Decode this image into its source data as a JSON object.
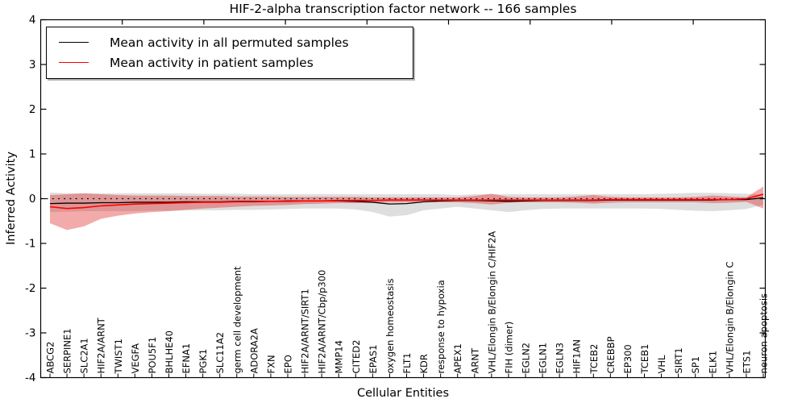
{
  "title": "HIF-2-alpha transcription factor network -- 166 samples",
  "legend": {
    "items": [
      {
        "label": "Mean activity in all permuted samples",
        "color": "#000000"
      },
      {
        "label": "Mean activity in patient samples",
        "color": "#ff0000"
      }
    ]
  },
  "chart_data": {
    "type": "line",
    "title": "HIF-2-alpha transcription factor network -- 166 samples",
    "xlabel": "Cellular Entities",
    "ylabel": "Inferred Activity",
    "ylim": [
      -4,
      4
    ],
    "yticks": [
      -4,
      -3,
      -2,
      -1,
      0,
      1,
      2,
      3,
      4
    ],
    "grid": false,
    "zero_reference_line": 0,
    "legend_position": "upper left",
    "colors": {
      "permuted_line": "#000000",
      "permuted_band": "rgba(0,0,0,0.13)",
      "patient_line": "#ff0000",
      "patient_band": "rgba(221,20,20,0.36)",
      "zero_line": "#000000"
    },
    "categories": [
      "ABCG2",
      "SERPINE1",
      "SLC2A1",
      "HIF2A/ARNT",
      "TWIST1",
      "VEGFA",
      "POU5F1",
      "BHLHE40",
      "EFNA1",
      "PGK1",
      "SLC11A2",
      "germ cell development",
      "ADORA2A",
      "FXN",
      "EPO",
      "HIF2A/ARNT/SIRT1",
      "HIF2A/ARNT/Cbp/p300",
      "MMP14",
      "CITED2",
      "EPAS1",
      "oxygen homeostasis",
      "FLT1",
      "KDR",
      "response to hypoxia",
      "APEX1",
      "ARNT",
      "VHL/Elongin B/Elongin C/HIF2A",
      "FIH (dimer)",
      "EGLN2",
      "EGLN1",
      "EGLN3",
      "HIF1AN",
      "TCEB2",
      "CREBBP",
      "EP300",
      "TCEB1",
      "VHL",
      "SIRT1",
      "SP1",
      "ELK1",
      "VHL/Elongin B/Elongin C",
      "ETS1",
      "neuron apoptosis"
    ],
    "series": [
      {
        "name": "Mean activity in all permuted samples",
        "color": "#000000",
        "band_color": "rgba(0,0,0,0.13)",
        "values": [
          -0.11,
          -0.1,
          -0.1,
          -0.09,
          -0.09,
          -0.08,
          -0.08,
          -0.08,
          -0.07,
          -0.07,
          -0.07,
          -0.06,
          -0.06,
          -0.06,
          -0.05,
          -0.05,
          -0.05,
          -0.05,
          -0.06,
          -0.08,
          -0.12,
          -0.11,
          -0.07,
          -0.05,
          -0.04,
          -0.04,
          -0.05,
          -0.06,
          -0.05,
          -0.04,
          -0.04,
          -0.04,
          -0.04,
          -0.03,
          -0.03,
          -0.03,
          -0.03,
          -0.03,
          -0.03,
          -0.03,
          -0.02,
          -0.02,
          0.02
        ],
        "upper": [
          0.14,
          0.12,
          0.12,
          0.12,
          0.12,
          0.12,
          0.12,
          0.12,
          0.12,
          0.11,
          0.11,
          0.11,
          0.1,
          0.1,
          0.1,
          0.1,
          0.1,
          0.1,
          0.1,
          0.1,
          0.1,
          0.1,
          0.1,
          0.1,
          0.08,
          0.1,
          0.1,
          0.1,
          0.1,
          0.1,
          0.1,
          0.1,
          0.1,
          0.1,
          0.1,
          0.1,
          0.11,
          0.12,
          0.13,
          0.13,
          0.12,
          0.11,
          0.09
        ],
        "lower": [
          -0.3,
          -0.29,
          -0.28,
          -0.28,
          -0.28,
          -0.28,
          -0.27,
          -0.27,
          -0.26,
          -0.26,
          -0.26,
          -0.25,
          -0.25,
          -0.24,
          -0.23,
          -0.22,
          -0.22,
          -0.22,
          -0.24,
          -0.3,
          -0.4,
          -0.37,
          -0.26,
          -0.22,
          -0.18,
          -0.22,
          -0.26,
          -0.3,
          -0.26,
          -0.23,
          -0.22,
          -0.22,
          -0.22,
          -0.22,
          -0.22,
          -0.22,
          -0.23,
          -0.25,
          -0.27,
          -0.28,
          -0.26,
          -0.23,
          -0.14
        ]
      },
      {
        "name": "Mean activity in patient samples",
        "color": "#ff0000",
        "band_color": "rgba(221,20,20,0.36)",
        "values": [
          -0.18,
          -0.22,
          -0.2,
          -0.16,
          -0.14,
          -0.12,
          -0.11,
          -0.1,
          -0.09,
          -0.08,
          -0.08,
          -0.07,
          -0.07,
          -0.06,
          -0.06,
          -0.05,
          -0.05,
          -0.04,
          -0.04,
          -0.04,
          -0.03,
          -0.03,
          -0.03,
          -0.03,
          -0.03,
          -0.03,
          -0.03,
          -0.03,
          -0.03,
          -0.03,
          -0.03,
          -0.03,
          -0.03,
          -0.02,
          -0.02,
          -0.02,
          -0.02,
          -0.02,
          -0.02,
          -0.02,
          -0.02,
          0.0,
          0.1
        ],
        "upper": [
          0.08,
          0.1,
          0.12,
          0.1,
          0.08,
          0.07,
          0.07,
          0.07,
          0.06,
          0.06,
          0.06,
          0.05,
          0.05,
          0.05,
          0.04,
          0.04,
          0.04,
          0.04,
          0.04,
          0.03,
          0.03,
          0.03,
          0.03,
          0.03,
          0.03,
          0.06,
          0.11,
          0.04,
          0.03,
          0.03,
          0.03,
          0.05,
          0.08,
          0.04,
          0.03,
          0.03,
          0.03,
          0.03,
          0.04,
          0.07,
          0.05,
          0.03,
          0.27
        ],
        "lower": [
          -0.55,
          -0.7,
          -0.62,
          -0.45,
          -0.38,
          -0.33,
          -0.3,
          -0.28,
          -0.25,
          -0.22,
          -0.2,
          -0.18,
          -0.16,
          -0.15,
          -0.14,
          -0.12,
          -0.11,
          -0.1,
          -0.1,
          -0.09,
          -0.08,
          -0.08,
          -0.08,
          -0.08,
          -0.08,
          -0.1,
          -0.13,
          -0.09,
          -0.08,
          -0.08,
          -0.08,
          -0.09,
          -0.11,
          -0.09,
          -0.08,
          -0.08,
          -0.08,
          -0.08,
          -0.08,
          -0.1,
          -0.09,
          -0.07,
          -0.22
        ]
      }
    ]
  }
}
